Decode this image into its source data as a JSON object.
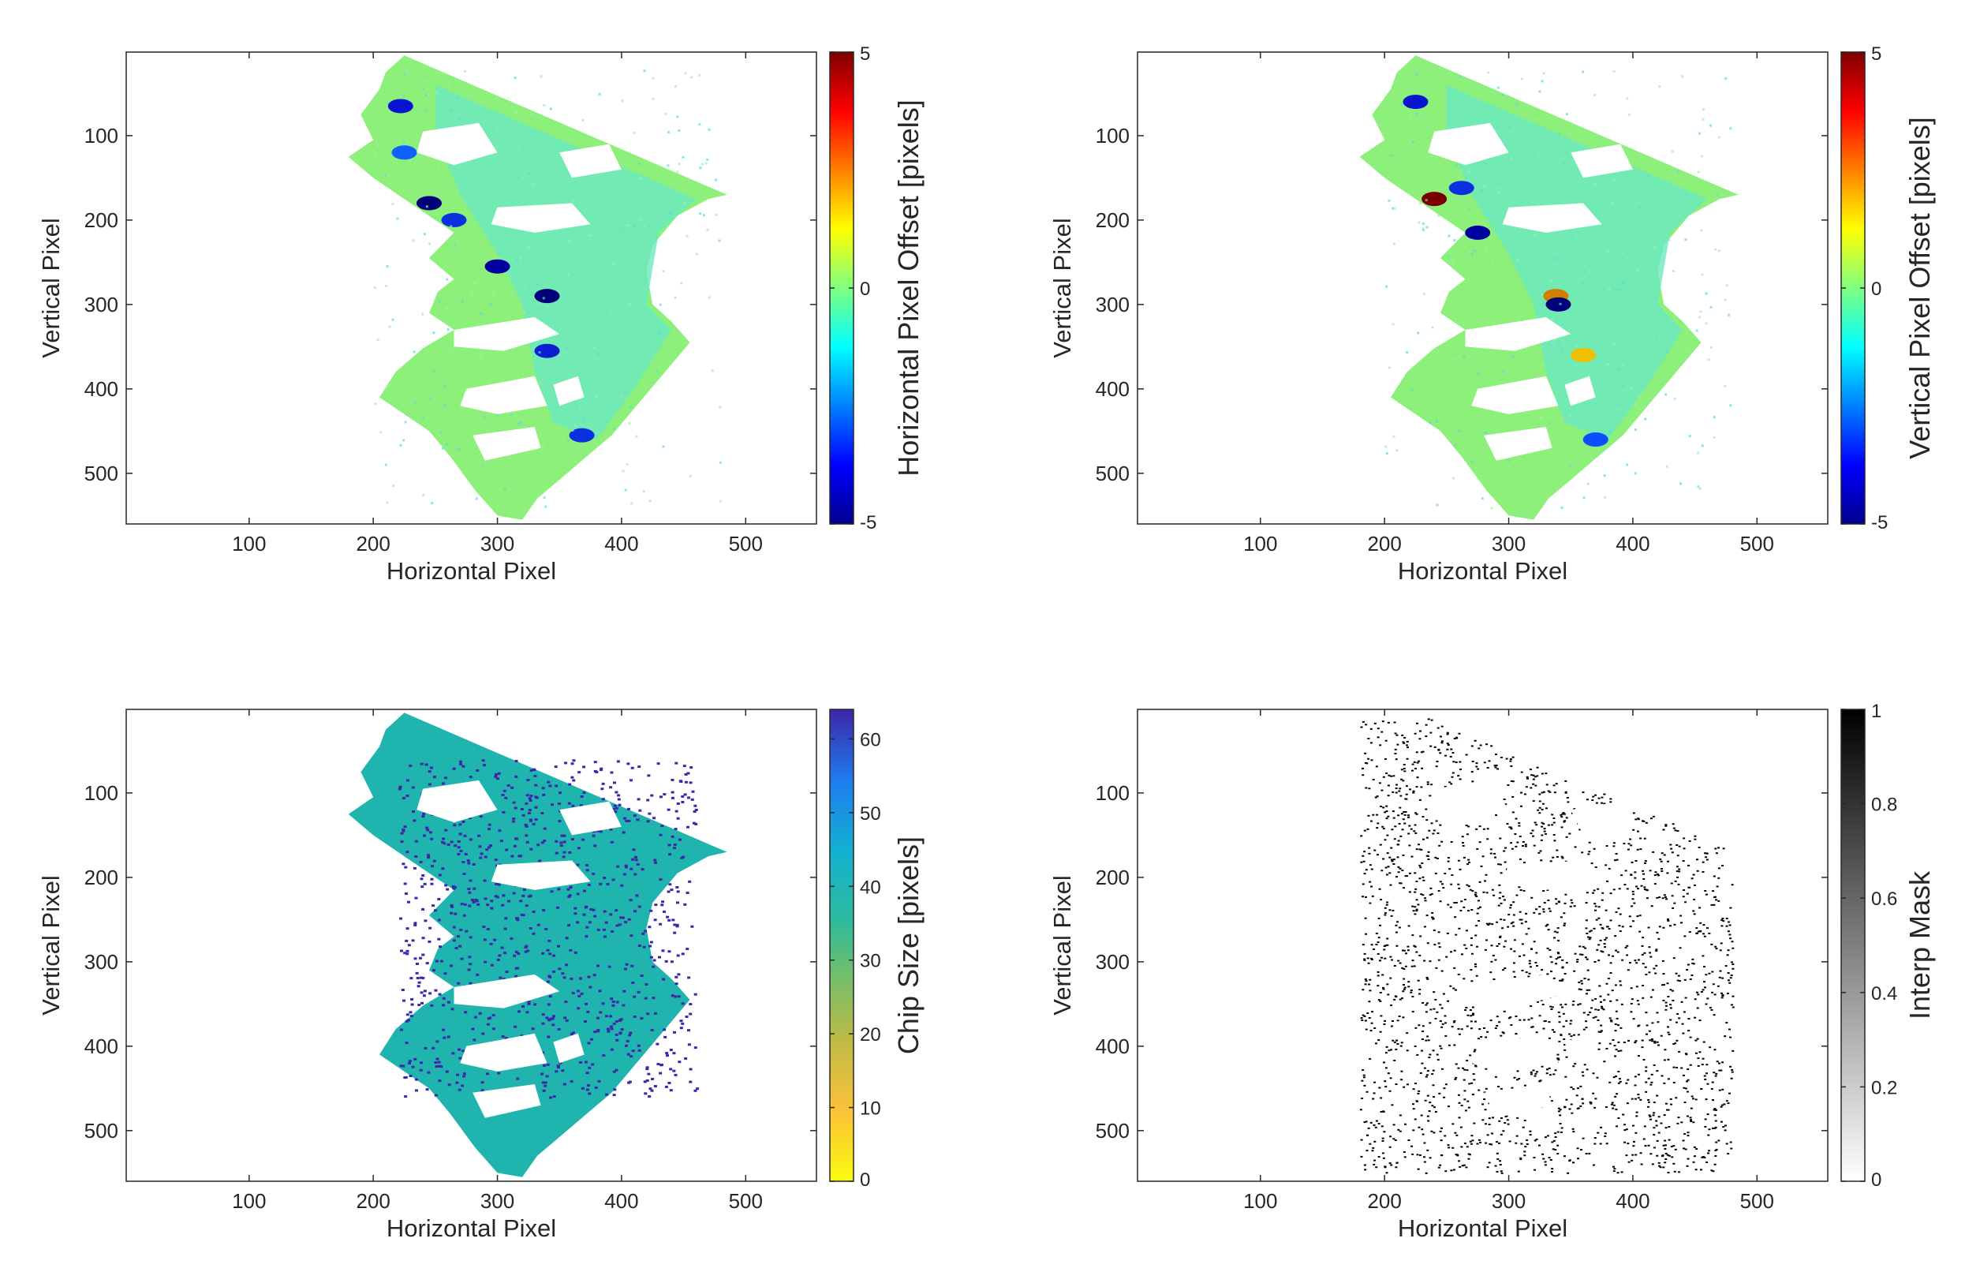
{
  "chart_data": [
    {
      "type": "heatmap",
      "title": "",
      "xlabel": "Horizontal Pixel",
      "ylabel": "Vertical Pixel",
      "xlim": [
        1,
        557
      ],
      "ylim": [
        1,
        560
      ],
      "y_reversed": true,
      "xticks": [
        100,
        200,
        300,
        400,
        500
      ],
      "yticks": [
        100,
        200,
        300,
        400,
        500
      ],
      "colorbar": {
        "label": "Horizontal Pixel Offset [pixels]",
        "colormap": "jet",
        "range": [
          -5,
          5
        ],
        "ticks": [
          5,
          0,
          -5
        ],
        "tick_labels": [
          "5",
          "0",
          "-5"
        ]
      }
    },
    {
      "type": "heatmap",
      "title": "",
      "xlabel": "Horizontal Pixel",
      "ylabel": "Vertical Pixel",
      "xlim": [
        1,
        557
      ],
      "ylim": [
        1,
        560
      ],
      "y_reversed": true,
      "xticks": [
        100,
        200,
        300,
        400,
        500
      ],
      "yticks": [
        100,
        200,
        300,
        400,
        500
      ],
      "colorbar": {
        "label": "Vertical Pixel Offset [pixels]",
        "colormap": "jet",
        "range": [
          -5,
          5
        ],
        "ticks": [
          5,
          0,
          -5
        ],
        "tick_labels": [
          "5",
          "0",
          "-5"
        ]
      }
    },
    {
      "type": "heatmap",
      "title": "",
      "xlabel": "Horizontal Pixel",
      "ylabel": "Vertical Pixel",
      "xlim": [
        1,
        557
      ],
      "ylim": [
        1,
        560
      ],
      "y_reversed": true,
      "xticks": [
        100,
        200,
        300,
        400,
        500
      ],
      "yticks": [
        100,
        200,
        300,
        400,
        500
      ],
      "colorbar": {
        "label": "Chip Size [pixels]",
        "colormap": "parula",
        "range": [
          0,
          64
        ],
        "ticks": [
          0,
          10,
          20,
          30,
          40,
          50,
          60
        ],
        "tick_labels": [
          "0",
          "10",
          "20",
          "30",
          "40",
          "50",
          "60"
        ]
      }
    },
    {
      "type": "heatmap",
      "title": "",
      "xlabel": "Horizontal Pixel",
      "ylabel": "Vertical Pixel",
      "xlim": [
        1,
        557
      ],
      "ylim": [
        1,
        560
      ],
      "y_reversed": true,
      "xticks": [
        100,
        200,
        300,
        400,
        500
      ],
      "yticks": [
        100,
        200,
        300,
        400,
        500
      ],
      "colorbar": {
        "label": "Interp Mask",
        "colormap": "gray-reversed",
        "range": [
          0,
          1
        ],
        "ticks": [
          0,
          0.2,
          0.4,
          0.6,
          0.8,
          1
        ],
        "tick_labels": [
          "0",
          "0.2",
          "0.4",
          "0.6",
          "0.8",
          "1"
        ]
      }
    }
  ]
}
